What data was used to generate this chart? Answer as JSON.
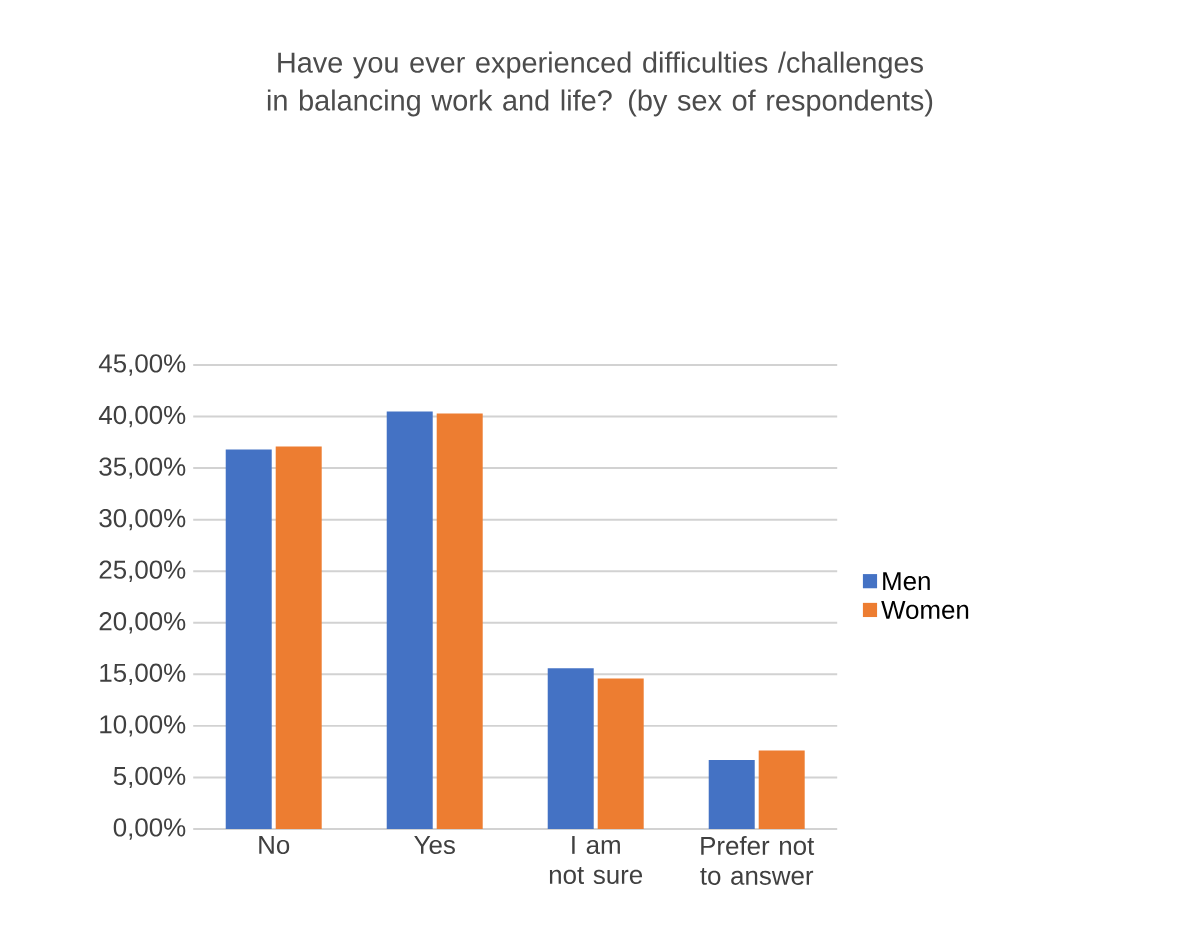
{
  "chart_data": {
    "type": "bar",
    "title": "Have you ever experienced difficulties /challenges in balancing work and life? (by sex of respondents)",
    "categories": [
      "No",
      "Yes",
      "I am not sure",
      "Prefer not to answer"
    ],
    "series": [
      {
        "name": "Men",
        "color": "#4472c4",
        "values": [
          36.8,
          40.5,
          15.6,
          6.7
        ]
      },
      {
        "name": "Women",
        "color": "#ed7d31",
        "values": [
          37.1,
          40.3,
          14.6,
          7.6
        ]
      }
    ],
    "ylim": [
      0,
      45
    ],
    "yticks": [
      {
        "value": 0,
        "label": "0,00%"
      },
      {
        "value": 5,
        "label": "5,00%"
      },
      {
        "value": 10,
        "label": "10,00%"
      },
      {
        "value": 15,
        "label": "15,00%"
      },
      {
        "value": 20,
        "label": "20,00%"
      },
      {
        "value": 25,
        "label": "25,00%"
      },
      {
        "value": 30,
        "label": "30,00%"
      },
      {
        "value": 35,
        "label": "35,00%"
      },
      {
        "value": 40,
        "label": "40,00%"
      },
      {
        "value": 45,
        "label": "45,00%"
      }
    ],
    "grid": "y",
    "legend": "right"
  }
}
